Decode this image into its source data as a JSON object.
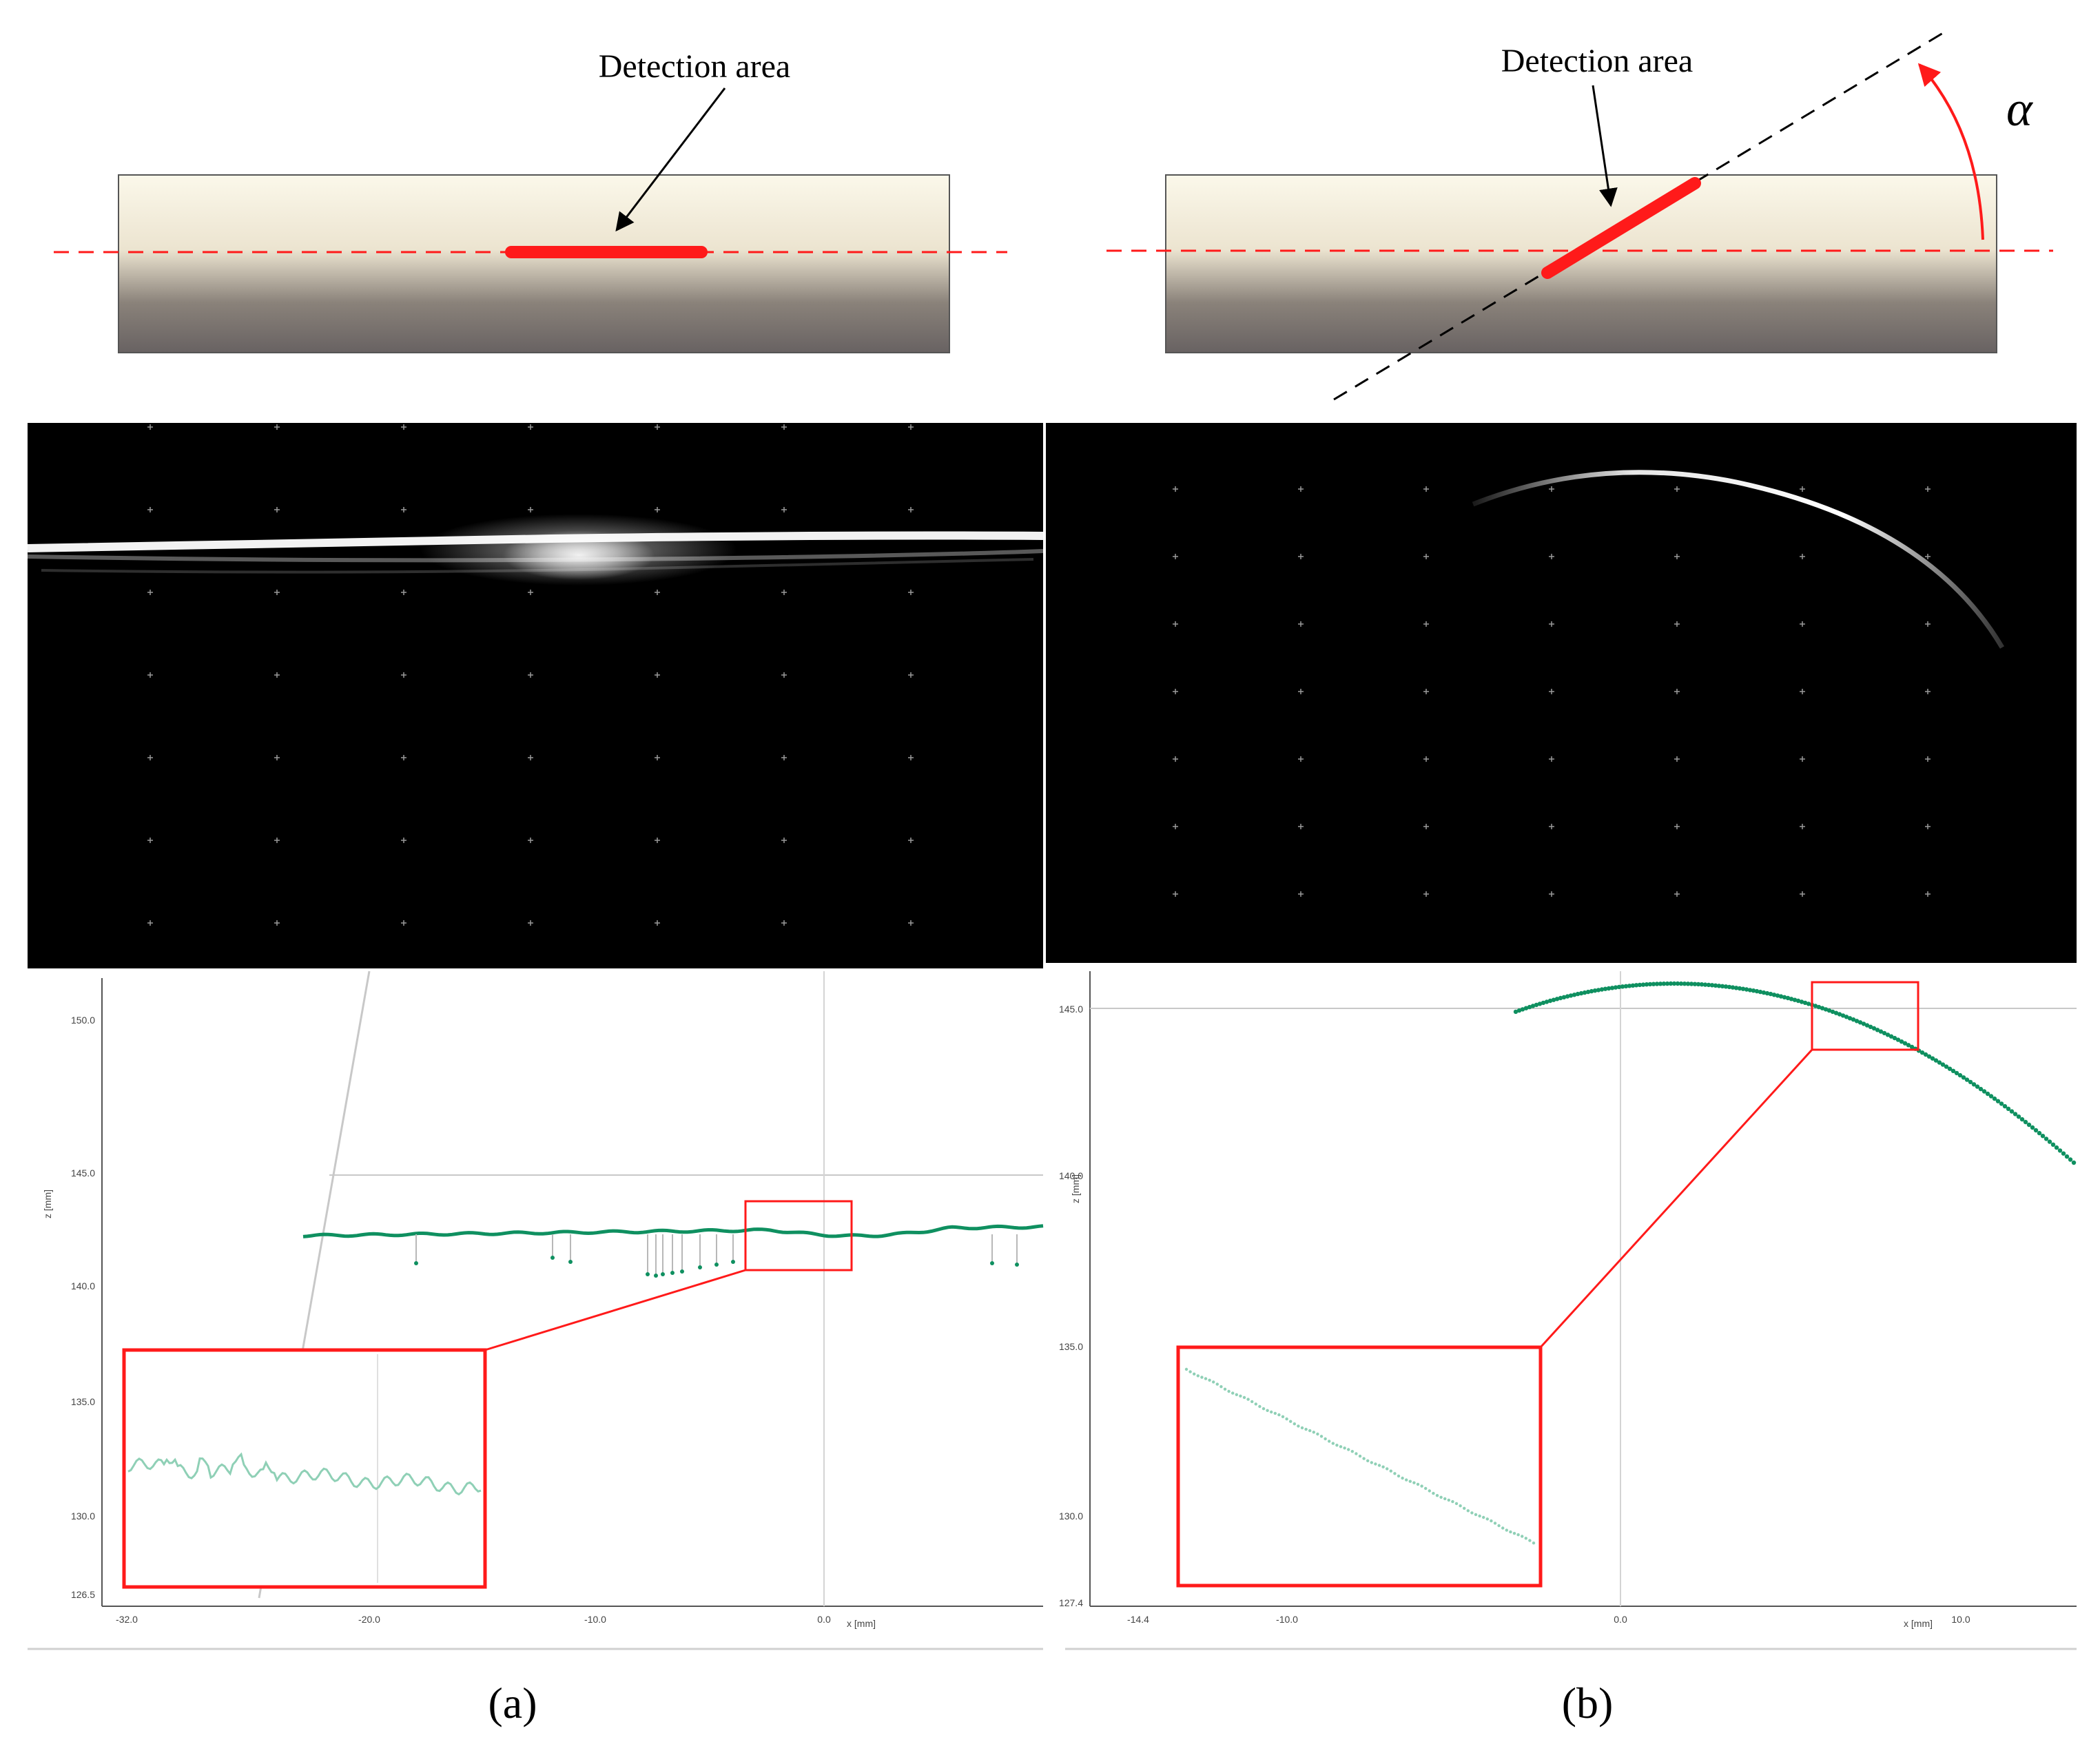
{
  "colors": {
    "accent_red": "#ff1a1a",
    "profile_green": "#0f9060",
    "inset_green": "#8fd0b6",
    "grid_gray": "#c8c8c8"
  },
  "panel_a": {
    "detection_label": "Detection area",
    "caption": "(a)",
    "plot": {
      "axis_label_x": "x [mm]",
      "axis_label_z": "z [mm]",
      "x_ticks": [
        "-32.0",
        "-20.0",
        "-10.0",
        "0.0"
      ],
      "z_ticks": [
        "150.0",
        "145.0",
        "140.0",
        "135.0",
        "130.0",
        "126.5"
      ]
    }
  },
  "panel_b": {
    "detection_label": "Detection area",
    "angle_symbol": "α",
    "caption": "(b)",
    "plot": {
      "axis_label_x": "x [mm]",
      "axis_label_z": "z [mm]",
      "x_ticks": [
        "-14.4",
        "-10.0",
        "0.0",
        "10.0"
      ],
      "z_ticks": [
        "145.0",
        "140.0",
        "135.0",
        "130.0",
        "127.4"
      ]
    }
  }
}
